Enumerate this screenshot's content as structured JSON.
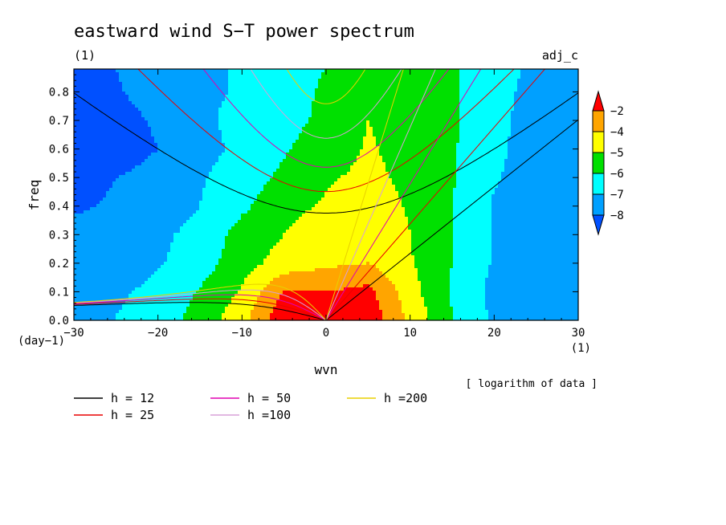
{
  "chart_data": {
    "type": "heatmap",
    "title": "eastward wind S−T power spectrum",
    "subtitle_left": "(1)",
    "subtitle_right": "adj_c",
    "xlabel": "wvn",
    "ylabel": "freq",
    "x_unit": "(1)",
    "y_unit": "(day−1)",
    "note": "[ logarithm of data ]",
    "xlim": [
      -30,
      30
    ],
    "ylim": [
      0,
      0.88
    ],
    "x_ticks": [
      "−30",
      "−20",
      "−10",
      "0",
      "10",
      "20",
      "30"
    ],
    "y_ticks": [
      "0.0",
      "0.1",
      "0.2",
      "0.3",
      "0.4",
      "0.5",
      "0.6",
      "0.7",
      "0.8"
    ],
    "colorbar": {
      "labels": [
        "−2",
        "−4",
        "−5",
        "−6",
        "−7",
        "−8"
      ],
      "colors": [
        "#ff0000",
        "#ffa500",
        "#ffff00",
        "#00e000",
        "#00ffff",
        "#00a0ff",
        "#0050ff"
      ]
    },
    "field": {
      "x_centers": [
        -30,
        -25,
        -20,
        -15,
        -10,
        -5,
        0,
        5,
        10,
        15,
        20,
        25,
        30
      ],
      "y_centers": [
        0.02,
        0.1,
        0.2,
        0.3,
        0.4,
        0.5,
        0.6,
        0.7,
        0.8,
        0.88
      ],
      "values": [
        [
          -7.3,
          -7.0,
          -6.5,
          -5.7,
          -4.4,
          -2.3,
          -2.6,
          -2.3,
          -4.3,
          -6.0,
          -7.2,
          -7.6,
          -7.8
        ],
        [
          -7.5,
          -7.2,
          -6.7,
          -5.9,
          -4.9,
          -2.9,
          -3.0,
          -2.7,
          -4.6,
          -6.1,
          -7.3,
          -7.6,
          -7.8
        ],
        [
          -7.8,
          -7.6,
          -7.1,
          -6.5,
          -5.4,
          -4.6,
          -4.2,
          -4.0,
          -4.9,
          -6.0,
          -7.1,
          -7.6,
          -7.9
        ],
        [
          -7.8,
          -7.6,
          -7.2,
          -6.7,
          -5.6,
          -5.0,
          -4.4,
          -4.0,
          -5.0,
          -6.0,
          -7.1,
          -7.6,
          -7.9
        ],
        [
          -8.1,
          -7.9,
          -7.6,
          -7.0,
          -6.2,
          -5.3,
          -4.9,
          -4.5,
          -5.1,
          -6.0,
          -7.1,
          -7.6,
          -7.7
        ],
        [
          -8.3,
          -8.0,
          -7.8,
          -7.1,
          -6.5,
          -5.8,
          -5.1,
          -4.8,
          -5.2,
          -5.9,
          -6.9,
          -7.5,
          -7.6
        ],
        [
          -8.5,
          -8.3,
          -8.0,
          -7.3,
          -6.8,
          -6.1,
          -5.5,
          -4.9,
          -5.3,
          -5.9,
          -6.8,
          -7.4,
          -7.5
        ],
        [
          -8.5,
          -8.3,
          -7.9,
          -7.2,
          -6.7,
          -6.3,
          -5.8,
          -5.0,
          -5.3,
          -5.8,
          -6.8,
          -7.3,
          -7.4
        ],
        [
          -8.3,
          -8.1,
          -7.6,
          -7.2,
          -6.9,
          -6.3,
          -5.9,
          -5.2,
          -5.5,
          -5.8,
          -6.8,
          -7.2,
          -7.3
        ],
        [
          -8.3,
          -8.0,
          -7.4,
          -7.2,
          -6.9,
          -6.2,
          -6.0,
          -5.6,
          -5.7,
          -5.8,
          -6.8,
          -7.1,
          -7.2
        ]
      ]
    },
    "legend": [
      {
        "label": "h = 12",
        "color": "#000000"
      },
      {
        "label": "h = 25",
        "color": "#e80000"
      },
      {
        "label": "h = 50",
        "color": "#e000b0"
      },
      {
        "label": "h =100",
        "color": "#d8a0d8"
      },
      {
        "label": "h =200",
        "color": "#e8d000"
      }
    ],
    "dispersion_heights": [
      12,
      25,
      50,
      100,
      200
    ]
  }
}
